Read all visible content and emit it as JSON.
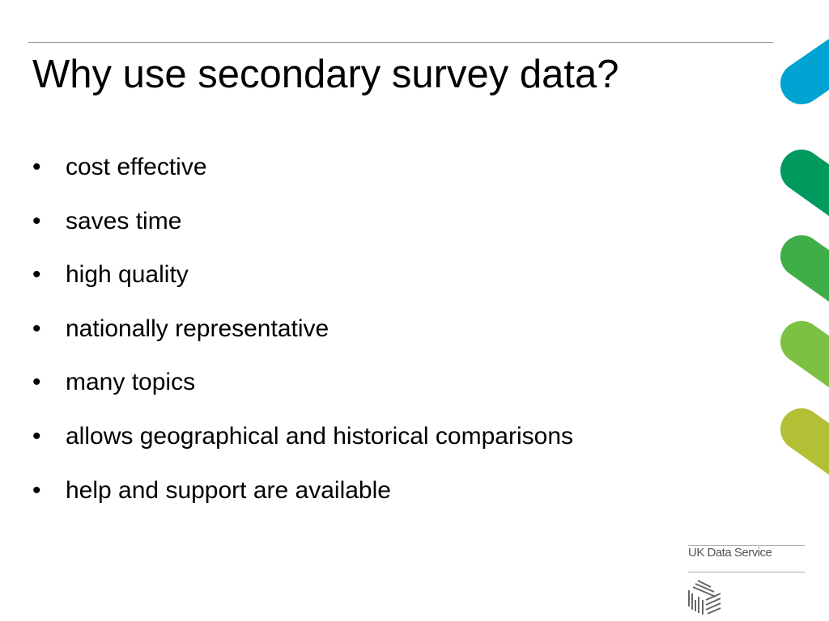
{
  "slide": {
    "title": "Why use secondary survey data?",
    "bullets": [
      "cost effective",
      "saves time",
      "high quality",
      "nationally representative",
      "many topics",
      "allows geographical and historical comparisons",
      "help and support are available"
    ],
    "bullet_symbol": "•"
  },
  "logo": {
    "text": "UK Data Service"
  },
  "colors": {
    "blue": "#00a3d1",
    "green1": "#009a5e",
    "green2": "#3fae49",
    "green3": "#7cc142",
    "olive": "#b3bf34"
  }
}
